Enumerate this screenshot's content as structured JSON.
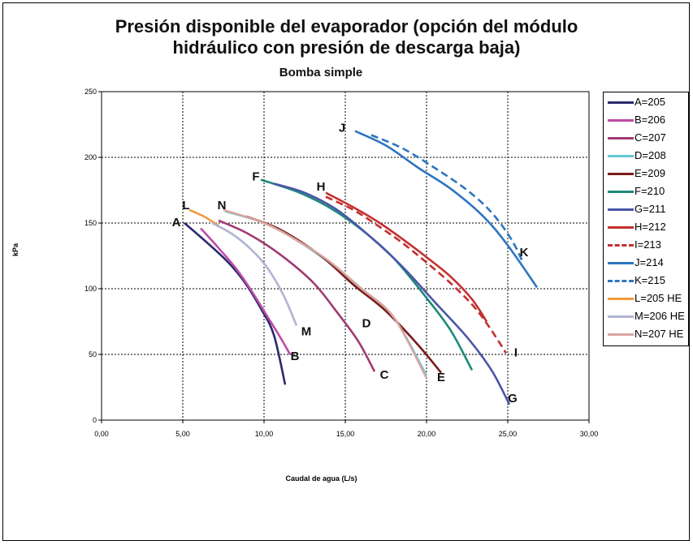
{
  "chart_data": {
    "type": "line",
    "title_line1": "Presión disponible del evaporador (opción del módulo",
    "title_line2": "hidráulico con presión de descarga baja)",
    "subtitle": "Bomba simple",
    "xlabel": "Caudal de agua (L/s)",
    "ylabel": "kPa",
    "xlim": [
      0,
      30
    ],
    "ylim": [
      0,
      250
    ],
    "x_ticks": [
      "0,00",
      "5,00",
      "10,00",
      "15,00",
      "20,00",
      "25,00",
      "30,00"
    ],
    "x_tick_values": [
      0,
      5,
      10,
      15,
      20,
      25,
      30
    ],
    "y_ticks": [
      "0",
      "50",
      "100",
      "150",
      "200",
      "250"
    ],
    "y_tick_values": [
      0,
      50,
      100,
      150,
      200,
      250
    ],
    "grid": true,
    "legend_position": "right",
    "series": [
      {
        "name": "A=205",
        "label": "A",
        "color": "#2b2a6e",
        "dashed": false,
        "points": [
          [
            5.1,
            150
          ],
          [
            6.5,
            135
          ],
          [
            7.8,
            120
          ],
          [
            8.8,
            105
          ],
          [
            9.8,
            85
          ],
          [
            10.6,
            65
          ],
          [
            11.3,
            27
          ]
        ]
      },
      {
        "name": "B=206",
        "label": "B",
        "color": "#c04ba6",
        "dashed": false,
        "points": [
          [
            6.1,
            146
          ],
          [
            7.2,
            131
          ],
          [
            8.3,
            115
          ],
          [
            9.3,
            97
          ],
          [
            10.2,
            79
          ],
          [
            11.0,
            63
          ],
          [
            11.6,
            50
          ]
        ]
      },
      {
        "name": "C=207",
        "label": "C",
        "color": "#a03a72",
        "dashed": false,
        "points": [
          [
            7.2,
            152
          ],
          [
            9.0,
            142
          ],
          [
            11.0,
            126
          ],
          [
            13.0,
            105
          ],
          [
            14.5,
            82
          ],
          [
            15.8,
            60
          ],
          [
            16.8,
            37
          ]
        ]
      },
      {
        "name": "D=208",
        "label": "D",
        "color": "#66c8d6",
        "dashed": false,
        "points": [
          [
            7.6,
            159
          ],
          [
            10.0,
            150
          ],
          [
            12.0,
            137
          ],
          [
            14.0,
            120
          ],
          [
            16.0,
            100
          ],
          [
            18.0,
            78
          ],
          [
            20.0,
            34
          ]
        ]
      },
      {
        "name": "E=209",
        "label": "E",
        "color": "#7a1c1c",
        "dashed": false,
        "points": [
          [
            8.9,
            155
          ],
          [
            11.0,
            145
          ],
          [
            13.5,
            125
          ],
          [
            15.5,
            103
          ],
          [
            17.5,
            83
          ],
          [
            19.5,
            57
          ],
          [
            20.9,
            36
          ]
        ]
      },
      {
        "name": "F=210",
        "label": "F",
        "color": "#1e8a7a",
        "dashed": false,
        "points": [
          [
            9.8,
            183
          ],
          [
            12.0,
            174
          ],
          [
            14.0,
            162
          ],
          [
            16.0,
            145
          ],
          [
            18.0,
            123
          ],
          [
            20.0,
            93
          ],
          [
            21.5,
            68
          ],
          [
            22.8,
            38
          ]
        ]
      },
      {
        "name": "G=211",
        "label": "G",
        "color": "#4a56a8",
        "dashed": false,
        "points": [
          [
            10.6,
            180
          ],
          [
            12.5,
            173
          ],
          [
            14.5,
            160
          ],
          [
            16.5,
            140
          ],
          [
            18.5,
            117
          ],
          [
            20.5,
            90
          ],
          [
            22.5,
            63
          ],
          [
            24.0,
            38
          ],
          [
            25.1,
            12
          ]
        ]
      },
      {
        "name": "H=212",
        "label": "H",
        "color": "#c43030",
        "dashed": false,
        "points": [
          [
            13.8,
            173
          ],
          [
            15.5,
            162
          ],
          [
            17.0,
            151
          ],
          [
            18.5,
            138
          ],
          [
            20.0,
            124
          ],
          [
            21.5,
            109
          ],
          [
            22.8,
            92
          ],
          [
            23.7,
            75
          ]
        ]
      },
      {
        "name": "I=213",
        "label": "I",
        "color": "#c43030",
        "dashed": true,
        "points": [
          [
            13.8,
            170
          ],
          [
            15.5,
            160
          ],
          [
            17.0,
            148
          ],
          [
            18.5,
            135
          ],
          [
            20.0,
            120
          ],
          [
            21.5,
            104
          ],
          [
            22.8,
            88
          ],
          [
            23.8,
            72
          ],
          [
            24.9,
            51
          ]
        ]
      },
      {
        "name": "J=214",
        "label": "J",
        "color": "#2e75c0",
        "dashed": false,
        "points": [
          [
            15.6,
            220
          ],
          [
            17.5,
            209
          ],
          [
            19.5,
            192
          ],
          [
            21.5,
            176
          ],
          [
            23.5,
            155
          ],
          [
            25.0,
            133
          ],
          [
            26.8,
            101
          ]
        ]
      },
      {
        "name": "K=215",
        "label": "K",
        "color": "#2e75c0",
        "dashed": true,
        "points": [
          [
            16.6,
            217
          ],
          [
            18.5,
            207
          ],
          [
            20.5,
            192
          ],
          [
            22.5,
            175
          ],
          [
            24.0,
            158
          ],
          [
            25.2,
            138
          ],
          [
            25.9,
            121
          ]
        ]
      },
      {
        "name": "L=205 HE",
        "label": "L",
        "color": "#f09a3a",
        "dashed": false,
        "points": [
          [
            5.4,
            160
          ],
          [
            6.3,
            155
          ],
          [
            7.2,
            148
          ]
        ]
      },
      {
        "name": "M=206 HE",
        "label": "M",
        "color": "#b0b4d4",
        "dashed": false,
        "points": [
          [
            6.8,
            150
          ],
          [
            8.0,
            142
          ],
          [
            9.2,
            130
          ],
          [
            10.2,
            116
          ],
          [
            11.2,
            95
          ],
          [
            12.0,
            72
          ]
        ]
      },
      {
        "name": "N=207 HE",
        "label": "N",
        "color": "#d8a6a0",
        "dashed": false,
        "points": [
          [
            7.5,
            160
          ],
          [
            10.0,
            150
          ],
          [
            12.0,
            137
          ],
          [
            14.0,
            121
          ],
          [
            16.0,
            100
          ],
          [
            18.0,
            78
          ],
          [
            20.0,
            32
          ]
        ]
      }
    ],
    "annotations": [
      {
        "text": "A",
        "x": 4.6,
        "y": 150
      },
      {
        "text": "B",
        "x": 11.9,
        "y": 48
      },
      {
        "text": "C",
        "x": 17.4,
        "y": 34
      },
      {
        "text": "D",
        "x": 16.3,
        "y": 73
      },
      {
        "text": "E",
        "x": 20.9,
        "y": 32
      },
      {
        "text": "F",
        "x": 9.5,
        "y": 185
      },
      {
        "text": "G",
        "x": 25.3,
        "y": 16
      },
      {
        "text": "H",
        "x": 13.5,
        "y": 177
      },
      {
        "text": "I",
        "x": 25.5,
        "y": 51
      },
      {
        "text": "J",
        "x": 14.8,
        "y": 222
      },
      {
        "text": "K",
        "x": 26.0,
        "y": 127
      },
      {
        "text": "L",
        "x": 5.2,
        "y": 163
      },
      {
        "text": "M",
        "x": 12.6,
        "y": 67
      },
      {
        "text": "N",
        "x": 7.4,
        "y": 163
      }
    ]
  }
}
